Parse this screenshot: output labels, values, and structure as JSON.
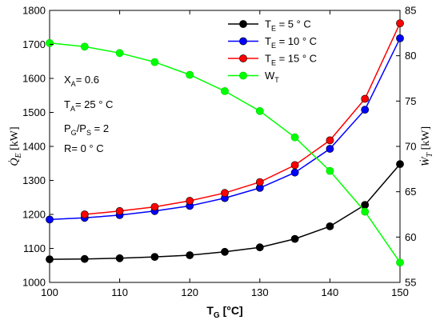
{
  "chart_data": {
    "type": "line",
    "x": [
      100,
      105,
      110,
      115,
      120,
      125,
      130,
      135,
      140,
      145,
      150
    ],
    "xlim": [
      100,
      150
    ],
    "xticks": [
      100,
      110,
      120,
      130,
      140,
      150
    ],
    "xlabel": "T",
    "xlabel_sub": "G",
    "xlabel_unit": " [°C]",
    "ylim_left": [
      1000,
      1800
    ],
    "yticks_left": [
      1000,
      1100,
      1200,
      1300,
      1400,
      1500,
      1600,
      1700,
      1800
    ],
    "ylabel_left": "Q̇",
    "ylabel_left_sub": "E",
    "ylabel_left_unit": " [kW]",
    "ylim_right": [
      55,
      85
    ],
    "yticks_right": [
      55,
      60,
      65,
      70,
      75,
      80,
      85
    ],
    "ylabel_right": "Ẇ",
    "ylabel_right_sub": "T",
    "ylabel_right_unit": " [kW]",
    "grid": false,
    "legend_position": "top-right",
    "series": [
      {
        "name": "T",
        "name_sub": "E",
        "name_rest": " = 5 ° C",
        "color": "#000000",
        "axis": "left",
        "values": [
          1068,
          1069,
          1071,
          1075,
          1080,
          1090,
          1103,
          1128,
          1165,
          1228,
          1348
        ]
      },
      {
        "name": "T",
        "name_sub": "E",
        "name_rest": " = 10 ° C",
        "color": "#0000ff",
        "axis": "left",
        "values": [
          1185,
          1190,
          1198,
          1210,
          1225,
          1248,
          1278,
          1323,
          1393,
          1508,
          1718
        ]
      },
      {
        "name": "T",
        "name_sub": "E",
        "name_rest": " = 15 ° C",
        "color": "#ff0000",
        "axis": "left",
        "values": [
          null,
          1200,
          1210,
          1222,
          1240,
          1263,
          1295,
          1345,
          1418,
          1540,
          1762
        ]
      },
      {
        "name": "W",
        "name_sub": "T",
        "name_rest": "",
        "color": "#00ff00",
        "axis": "right",
        "values": [
          81.4,
          81.0,
          80.3,
          79.3,
          77.9,
          76.1,
          73.9,
          71.0,
          67.3,
          62.8,
          57.2
        ]
      }
    ],
    "annotation_lines": [
      {
        "main": "X",
        "sub": "A",
        "rest": "= 0.6"
      },
      {
        "main": "T",
        "sub": "A",
        "rest": "= 25 ° C"
      },
      {
        "main": "P",
        "sub": "G",
        "rest": "/P",
        "sub2": "S",
        "rest2": " = 2"
      },
      {
        "main": "R= 0 ° C",
        "sub": "",
        "rest": ""
      }
    ]
  }
}
